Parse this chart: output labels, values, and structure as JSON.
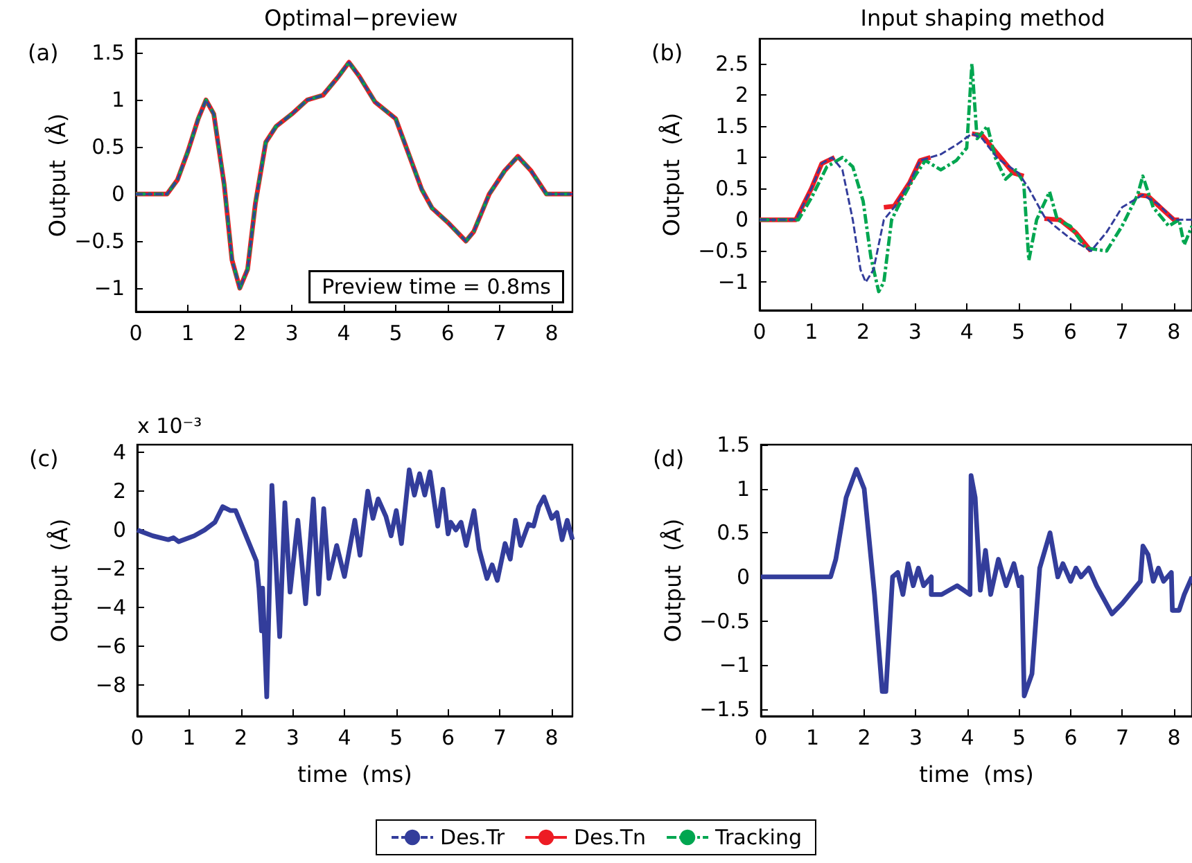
{
  "chart_data": [
    {
      "type": "line",
      "title": "Optimal−preview",
      "ylabel": "Output  (Å)",
      "annotations": [
        "(a)",
        "Preview time = 0.8ms"
      ],
      "xlim": [
        0,
        8.4
      ],
      "ylim": [
        -1.25,
        1.65
      ],
      "xticks": [
        0,
        1,
        2,
        3,
        4,
        5,
        6,
        7,
        8
      ],
      "yticks": [
        -1,
        -0.5,
        0,
        0.5,
        1,
        1.5
      ],
      "grid": false,
      "legend": "bottom",
      "marker": "none",
      "x": [
        0,
        0.6,
        0.8,
        1.0,
        1.2,
        1.35,
        1.5,
        1.7,
        1.85,
        2.0,
        2.15,
        2.3,
        2.5,
        2.7,
        3.0,
        3.3,
        3.6,
        3.9,
        4.1,
        4.3,
        4.6,
        5.0,
        5.2,
        5.5,
        5.7,
        6.0,
        6.35,
        6.5,
        6.8,
        7.1,
        7.35,
        7.6,
        7.9,
        8.4
      ],
      "series": [
        {
          "name": "Des.Tr",
          "color": "#333d9b",
          "line_style": "dashed",
          "values": [
            0,
            0,
            0.15,
            0.45,
            0.8,
            1.0,
            0.85,
            0.1,
            -0.7,
            -1.0,
            -0.8,
            -0.1,
            0.55,
            0.72,
            0.85,
            1.0,
            1.05,
            1.25,
            1.4,
            1.25,
            0.98,
            0.8,
            0.5,
            0.05,
            -0.15,
            -0.3,
            -0.5,
            -0.4,
            0.0,
            0.25,
            0.4,
            0.25,
            0.0,
            0
          ]
        },
        {
          "name": "Des.Tn",
          "color": "#ed1c24",
          "line_style": "solid",
          "values": [
            0,
            0,
            0.15,
            0.45,
            0.8,
            1.0,
            0.85,
            0.1,
            -0.7,
            -1.0,
            -0.8,
            -0.1,
            0.55,
            0.72,
            0.85,
            1.0,
            1.05,
            1.25,
            1.4,
            1.25,
            0.98,
            0.8,
            0.5,
            0.05,
            -0.15,
            -0.3,
            -0.5,
            -0.4,
            0.0,
            0.25,
            0.4,
            0.25,
            0.0,
            0
          ]
        },
        {
          "name": "Tracking",
          "color": "#00a650",
          "line_style": "dotted",
          "values": [
            0,
            0,
            0.15,
            0.45,
            0.8,
            1.0,
            0.85,
            0.1,
            -0.7,
            -1.0,
            -0.8,
            -0.1,
            0.55,
            0.72,
            0.85,
            1.0,
            1.05,
            1.25,
            1.4,
            1.25,
            0.98,
            0.8,
            0.5,
            0.05,
            -0.15,
            -0.3,
            -0.5,
            -0.4,
            0.0,
            0.25,
            0.4,
            0.25,
            0.0,
            0
          ]
        }
      ]
    },
    {
      "type": "line",
      "title": "Input shaping method",
      "ylabel": "Output  (Å)",
      "annotations": [
        "(b)"
      ],
      "xlim": [
        0,
        8.35
      ],
      "ylim": [
        -1.45,
        2.9
      ],
      "xticks": [
        0,
        1,
        2,
        3,
        4,
        5,
        6,
        7,
        8
      ],
      "yticks": [
        -1,
        -0.5,
        0,
        0.5,
        1,
        1.5,
        2,
        2.5
      ],
      "grid": false,
      "marker": "none",
      "series": [
        {
          "color": "#333d9b",
          "line_style": "dashed",
          "x": [
            0,
            0.7,
            1.0,
            1.2,
            1.4,
            1.6,
            1.8,
            1.95,
            2.05,
            2.2,
            2.4,
            2.6,
            2.9,
            3.1,
            3.5,
            3.8,
            4.1,
            4.3,
            4.6,
            5.0,
            5.2,
            5.5,
            5.7,
            6.0,
            6.4,
            6.7,
            7.0,
            7.4,
            7.7,
            8.0,
            8.35
          ],
          "values": [
            0,
            0,
            0.5,
            0.9,
            1.0,
            0.8,
            0.0,
            -0.8,
            -1.0,
            -0.8,
            0.0,
            0.2,
            0.6,
            0.95,
            1.05,
            1.2,
            1.38,
            1.3,
            0.98,
            0.75,
            0.5,
            0.05,
            -0.1,
            -0.3,
            -0.5,
            -0.2,
            0.2,
            0.4,
            0.25,
            0.0,
            0
          ]
        },
        {
          "color": "#ed1c24",
          "line_style": "solid",
          "x": [
            0,
            0.7,
            1.0,
            1.2,
            1.45,
            1.46,
            2.4,
            2.6,
            2.9,
            3.1,
            3.3,
            3.31,
            4.1,
            4.3,
            4.6,
            4.9,
            5.1,
            5.11,
            5.5,
            5.8,
            6.1,
            6.4,
            6.45,
            7.3,
            7.5,
            7.8,
            8.0,
            8.1
          ],
          "values": [
            0,
            0,
            0.5,
            0.9,
            1.0,
            null,
            0.2,
            0.22,
            0.6,
            0.95,
            1.0,
            null,
            1.38,
            1.35,
            1.05,
            0.75,
            0.7,
            null,
            0.02,
            0.0,
            -0.2,
            -0.5,
            null,
            0.4,
            0.38,
            0.15,
            0.0,
            0.0
          ]
        },
        {
          "color": "#00a650",
          "line_style": "dotted",
          "x": [
            0,
            0.75,
            1.0,
            1.3,
            1.6,
            1.8,
            2.0,
            2.15,
            2.3,
            2.4,
            2.55,
            2.7,
            3.0,
            3.2,
            3.5,
            3.8,
            4.0,
            4.1,
            4.2,
            4.4,
            4.55,
            4.75,
            4.95,
            5.1,
            5.2,
            5.35,
            5.6,
            5.75,
            6.0,
            6.3,
            6.7,
            7.0,
            7.3,
            7.4,
            7.6,
            7.9,
            8.1,
            8.2,
            8.35
          ],
          "values": [
            0,
            0,
            0.35,
            0.85,
            1.0,
            0.85,
            0.3,
            -0.6,
            -1.15,
            -1.0,
            0.0,
            0.25,
            0.7,
            0.95,
            0.8,
            0.95,
            1.15,
            2.5,
            1.3,
            1.5,
            1.0,
            0.65,
            0.8,
            0.6,
            -0.65,
            0.0,
            0.45,
            0.0,
            -0.1,
            -0.45,
            -0.5,
            -0.1,
            0.4,
            0.7,
            0.2,
            -0.1,
            0.0,
            -0.4,
            -0.1
          ]
        }
      ]
    },
    {
      "type": "line",
      "ylabel": "Output  (Å)",
      "xlabel": "time  (ms)",
      "annotations": [
        "(c)",
        "x 10⁻³"
      ],
      "xlim": [
        0,
        8.4
      ],
      "ylim": [
        -9.6,
        4.4
      ],
      "xticks": [
        0,
        1,
        2,
        3,
        4,
        5,
        6,
        7,
        8
      ],
      "yticks": [
        -8,
        -6,
        -4,
        -2,
        0,
        2,
        4
      ],
      "grid": false,
      "marker": "none",
      "series": [
        {
          "color": "#333d9b",
          "line_style": "solid",
          "x": [
            0,
            0.3,
            0.6,
            0.7,
            0.8,
            1.1,
            1.3,
            1.5,
            1.65,
            1.8,
            1.9,
            2.1,
            2.3,
            2.35,
            2.4,
            2.42,
            2.5,
            2.6,
            2.75,
            2.85,
            2.95,
            3.1,
            3.25,
            3.4,
            3.5,
            3.6,
            3.7,
            3.85,
            4.0,
            4.2,
            4.3,
            4.45,
            4.55,
            4.65,
            4.8,
            4.9,
            5.0,
            5.1,
            5.25,
            5.35,
            5.45,
            5.55,
            5.65,
            5.8,
            5.9,
            6.0,
            6.05,
            6.15,
            6.25,
            6.35,
            6.5,
            6.6,
            6.75,
            6.85,
            6.95,
            7.1,
            7.2,
            7.3,
            7.4,
            7.55,
            7.65,
            7.75,
            7.85,
            8.0,
            8.1,
            8.2,
            8.3,
            8.4
          ],
          "values": [
            0,
            -0.3,
            -0.5,
            -0.4,
            -0.6,
            -0.3,
            0.0,
            0.4,
            1.2,
            1.0,
            1.0,
            -0.3,
            -1.6,
            -3.0,
            -5.2,
            -3.0,
            -8.6,
            2.3,
            -5.5,
            1.4,
            -3.2,
            0.5,
            -3.8,
            1.6,
            -3.3,
            1.1,
            -2.5,
            -0.8,
            -2.4,
            0.5,
            -1.3,
            2.0,
            0.6,
            1.6,
            0.7,
            -0.3,
            1.0,
            -0.7,
            3.1,
            1.8,
            2.9,
            1.8,
            3.0,
            0.2,
            2.1,
            -0.2,
            0.4,
            0.0,
            0.4,
            -0.8,
            1.0,
            -1.0,
            -2.5,
            -1.8,
            -2.6,
            -0.7,
            -1.5,
            0.5,
            -0.8,
            0.3,
            0.2,
            1.2,
            1.7,
            0.6,
            0.9,
            -0.5,
            0.5,
            -0.5
          ]
        }
      ]
    },
    {
      "type": "line",
      "ylabel": "Output  (Å)",
      "xlabel": "time  (ms)",
      "annotations": [
        "(d)"
      ],
      "xlim": [
        0,
        8.35
      ],
      "ylim": [
        -1.58,
        1.5
      ],
      "xticks": [
        0,
        1,
        2,
        3,
        4,
        5,
        6,
        7,
        8
      ],
      "yticks": [
        -1.5,
        -1,
        -0.5,
        0,
        0.5,
        1,
        1.5
      ],
      "grid": false,
      "marker": "none",
      "series": [
        {
          "color": "#333d9b",
          "line_style": "solid",
          "x": [
            0,
            1.35,
            1.45,
            1.65,
            1.85,
            2.0,
            2.2,
            2.35,
            2.42,
            2.55,
            2.65,
            2.75,
            2.85,
            2.95,
            3.05,
            3.15,
            3.3,
            3.3,
            3.5,
            3.8,
            4.05,
            4.07,
            4.15,
            4.25,
            4.35,
            4.45,
            4.6,
            4.75,
            4.9,
            5.0,
            5.05,
            5.1,
            5.25,
            5.4,
            5.6,
            5.75,
            5.85,
            6.0,
            6.1,
            6.2,
            6.35,
            6.5,
            6.8,
            7.0,
            7.35,
            7.4,
            7.5,
            7.6,
            7.7,
            7.8,
            7.95,
            7.97,
            8.1,
            8.2,
            8.35
          ],
          "values": [
            0,
            0,
            0.2,
            0.9,
            1.22,
            1.0,
            -0.2,
            -1.3,
            -1.3,
            0.0,
            0.05,
            -0.2,
            0.15,
            -0.1,
            0.1,
            -0.1,
            0.0,
            -0.2,
            -0.2,
            -0.1,
            -0.2,
            1.15,
            0.9,
            -0.15,
            0.3,
            -0.2,
            0.2,
            -0.1,
            0.15,
            -0.1,
            0.0,
            -1.35,
            -1.1,
            0.1,
            0.5,
            0.0,
            0.15,
            -0.05,
            0.1,
            0.0,
            0.1,
            -0.1,
            -0.42,
            -0.3,
            -0.05,
            0.35,
            0.25,
            -0.05,
            0.1,
            -0.05,
            0.05,
            -0.38,
            -0.38,
            -0.2,
            0.0
          ]
        }
      ]
    }
  ]
}
